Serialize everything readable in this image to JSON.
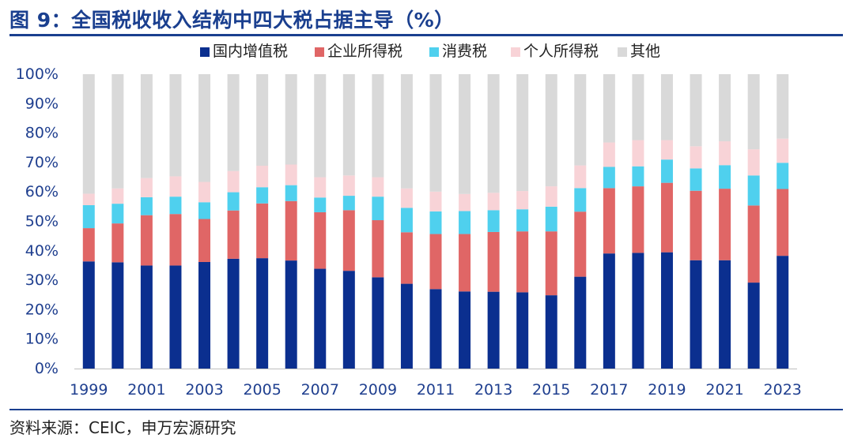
{
  "title": "图 9：全国税收收入结构中四大税占据主导（%）",
  "source": "资料来源：CEIC，申万宏源研究",
  "colors": {
    "title": "#1a3f8f",
    "axis": "#bfbfbf",
    "tick_text": "#1f3f8f"
  },
  "chart_data": {
    "type": "bar",
    "stacked": true,
    "title": "全国税收收入结构中四大税占据主导（%）",
    "xlabel": "",
    "ylabel": "",
    "ylim": [
      0,
      100
    ],
    "y_ticks": [
      "0%",
      "10%",
      "20%",
      "30%",
      "40%",
      "50%",
      "60%",
      "70%",
      "80%",
      "90%",
      "100%"
    ],
    "y_tick_values": [
      0,
      10,
      20,
      30,
      40,
      50,
      60,
      70,
      80,
      90,
      100
    ],
    "categories": [
      "1999",
      "2000",
      "2001",
      "2002",
      "2003",
      "2004",
      "2005",
      "2006",
      "2007",
      "2008",
      "2009",
      "2010",
      "2011",
      "2012",
      "2013",
      "2014",
      "2015",
      "2016",
      "2017",
      "2018",
      "2019",
      "2020",
      "2021",
      "2022",
      "2023"
    ],
    "x_tick_labels": [
      "1999",
      "2001",
      "2003",
      "2005",
      "2007",
      "2009",
      "2011",
      "2013",
      "2015",
      "2017",
      "2019",
      "2021",
      "2023"
    ],
    "legend_position": "top",
    "series": [
      {
        "name": "国内增值税",
        "color": "#0b2f8f",
        "values": [
          36.4,
          36.1,
          35.0,
          35.0,
          36.2,
          37.3,
          37.5,
          36.7,
          33.9,
          33.2,
          31.0,
          28.8,
          27.0,
          26.2,
          26.1,
          25.9,
          24.9,
          31.2,
          39.1,
          39.3,
          39.5,
          36.8,
          36.8,
          29.2,
          38.3
        ]
      },
      {
        "name": "企业所得税",
        "color": "#e06666",
        "values": [
          11.3,
          13.2,
          17.1,
          17.5,
          14.6,
          16.4,
          18.6,
          20.2,
          19.2,
          20.6,
          19.4,
          17.5,
          18.7,
          19.5,
          20.3,
          20.7,
          21.7,
          22.1,
          22.2,
          22.6,
          23.6,
          23.6,
          24.3,
          26.2,
          22.7
        ]
      },
      {
        "name": "消费税",
        "color": "#4fd0ee",
        "values": [
          7.8,
          6.7,
          6.1,
          5.9,
          5.7,
          6.2,
          5.5,
          5.4,
          5.0,
          4.9,
          8.0,
          8.3,
          7.7,
          7.8,
          7.4,
          7.5,
          8.4,
          8.0,
          7.2,
          6.8,
          7.9,
          7.6,
          8.0,
          10.2,
          8.9
        ]
      },
      {
        "name": "个人所得税",
        "color": "#f8d3d7",
        "values": [
          3.9,
          5.2,
          6.5,
          6.9,
          6.9,
          7.2,
          7.3,
          7.0,
          6.9,
          6.9,
          6.6,
          6.6,
          6.7,
          5.8,
          5.9,
          6.2,
          6.9,
          7.7,
          8.3,
          8.9,
          6.6,
          7.5,
          8.1,
          8.9,
          8.2
        ]
      },
      {
        "name": "其他",
        "color": "#d9d9d9",
        "values": [
          40.6,
          38.8,
          35.3,
          34.7,
          36.6,
          32.9,
          31.1,
          30.7,
          35.0,
          34.4,
          35.0,
          38.8,
          39.9,
          40.7,
          40.3,
          39.7,
          38.1,
          31.0,
          23.2,
          22.4,
          22.4,
          24.5,
          22.8,
          25.5,
          21.9
        ]
      }
    ]
  }
}
